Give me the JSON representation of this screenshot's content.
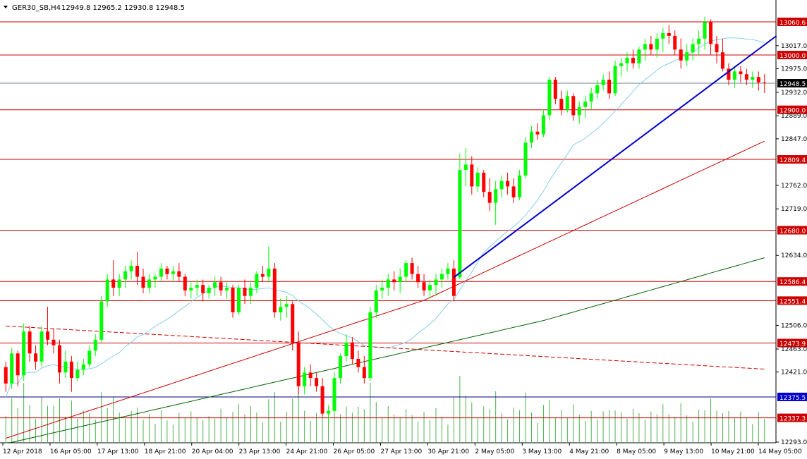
{
  "header": {
    "symbol": "GER30_SB,H4",
    "ohlc": "12949.8 12965.2 12930.8 12948.5"
  },
  "colors": {
    "up": "#00ff00",
    "down": "#ff0000",
    "volume": "#4caf50",
    "level_line": "#cc0000",
    "level_line_blue": "#000080",
    "price_line": "#708090",
    "ma_fast": "#87ceeb",
    "ma_mid": "#cc0000",
    "ma_slow": "#006400",
    "ma_long_dashed": "#cc0000",
    "trend_line": "#0000cc",
    "level_label_bg": "#cc0000",
    "level_label_blue_bg": "#0000cc",
    "current_label_bg": "#000000"
  },
  "chart_data": {
    "type": "candlestick",
    "ylim": [
      12293.0,
      13081.0
    ],
    "y_ticks": [
      "13017.0",
      "12975.0",
      "12932.0",
      "12889.0",
      "12847.0",
      "12762.0",
      "12719.0",
      "12634.0",
      "12506.0",
      "12463.0",
      "12421.0",
      "12293.0"
    ],
    "x_tick_labels": [
      "12 Apr 2018",
      "16 Apr 05:00",
      "17 Apr 13:00",
      "18 Apr 21:00",
      "20 Apr 04:00",
      "23 Apr 13:00",
      "24 Apr 21:00",
      "26 Apr 05:00",
      "27 Apr 13:00",
      "30 Apr 21:00",
      "2 May 05:00",
      "3 May 13:00",
      "4 May 21:00",
      "8 May 05:00",
      "9 May 13:00",
      "10 May 21:00",
      "14 May 05:00"
    ],
    "levels": [
      {
        "price": 13060.6,
        "label": "13060.6",
        "style": "red"
      },
      {
        "price": 13000.0,
        "label": "13000.0",
        "style": "red"
      },
      {
        "price": 12948.5,
        "label": "12948.5",
        "style": "current"
      },
      {
        "price": 12900.0,
        "label": "12900.0",
        "style": "red"
      },
      {
        "price": 12809.4,
        "label": "12809.4",
        "style": "red"
      },
      {
        "price": 12680.0,
        "label": "12680.0",
        "style": "red"
      },
      {
        "price": 12586.4,
        "label": "12586.4",
        "style": "red"
      },
      {
        "price": 12551.4,
        "label": "12551.4",
        "style": "red"
      },
      {
        "price": 12473.9,
        "label": "12473.9",
        "style": "red"
      },
      {
        "price": 12375.5,
        "label": "12375.5",
        "style": "blue"
      },
      {
        "price": 12337.3,
        "label": "12337.3",
        "style": "red"
      }
    ],
    "trend_line": {
      "from": {
        "bar": 75,
        "price": 12594
      },
      "to": {
        "bar": 129,
        "price": 13035
      }
    },
    "candles": [
      [
        12430,
        12440,
        12385,
        12400
      ],
      [
        12400,
        12465,
        12390,
        12455
      ],
      [
        12455,
        12460,
        12395,
        12415
      ],
      [
        12415,
        12510,
        12405,
        12495
      ],
      [
        12495,
        12505,
        12440,
        12455
      ],
      [
        12455,
        12470,
        12425,
        12440
      ],
      [
        12440,
        12505,
        12430,
        12495
      ],
      [
        12495,
        12540,
        12470,
        12480
      ],
      [
        12480,
        12500,
        12455,
        12470
      ],
      [
        12470,
        12480,
        12400,
        12420
      ],
      [
        12420,
        12460,
        12410,
        12440
      ],
      [
        12440,
        12450,
        12385,
        12410
      ],
      [
        12410,
        12440,
        12405,
        12425
      ],
      [
        12425,
        12445,
        12415,
        12435
      ],
      [
        12435,
        12470,
        12430,
        12460
      ],
      [
        12460,
        12490,
        12450,
        12480
      ],
      [
        12480,
        12560,
        12475,
        12550
      ],
      [
        12550,
        12600,
        12540,
        12590
      ],
      [
        12590,
        12625,
        12560,
        12575
      ],
      [
        12575,
        12600,
        12560,
        12590
      ],
      [
        12590,
        12615,
        12575,
        12605
      ],
      [
        12605,
        12625,
        12590,
        12615
      ],
      [
        12615,
        12640,
        12580,
        12595
      ],
      [
        12595,
        12610,
        12565,
        12575
      ],
      [
        12575,
        12600,
        12565,
        12590
      ],
      [
        12590,
        12600,
        12575,
        12595
      ],
      [
        12595,
        12620,
        12585,
        12610
      ],
      [
        12610,
        12615,
        12590,
        12600
      ],
      [
        12600,
        12615,
        12585,
        12605
      ],
      [
        12605,
        12620,
        12585,
        12595
      ],
      [
        12595,
        12600,
        12560,
        12570
      ],
      [
        12570,
        12585,
        12555,
        12575
      ],
      [
        12575,
        12590,
        12560,
        12580
      ],
      [
        12580,
        12590,
        12550,
        12565
      ],
      [
        12565,
        12580,
        12555,
        12575
      ],
      [
        12575,
        12595,
        12560,
        12585
      ],
      [
        12585,
        12595,
        12560,
        12570
      ],
      [
        12570,
        12585,
        12555,
        12575
      ],
      [
        12575,
        12580,
        12520,
        12530
      ],
      [
        12530,
        12580,
        12525,
        12575
      ],
      [
        12575,
        12590,
        12545,
        12560
      ],
      [
        12560,
        12585,
        12545,
        12575
      ],
      [
        12575,
        12605,
        12565,
        12600
      ],
      [
        12600,
        12615,
        12585,
        12595
      ],
      [
        12595,
        12650,
        12585,
        12610
      ],
      [
        12610,
        12620,
        12520,
        12530
      ],
      [
        12530,
        12555,
        12515,
        12540
      ],
      [
        12540,
        12560,
        12520,
        12545
      ],
      [
        12545,
        12550,
        12460,
        12475
      ],
      [
        12475,
        12495,
        12380,
        12395
      ],
      [
        12395,
        12430,
        12380,
        12420
      ],
      [
        12420,
        12435,
        12395,
        12410
      ],
      [
        12410,
        12420,
        12385,
        12395
      ],
      [
        12395,
        12410,
        12340,
        12345
      ],
      [
        12345,
        12360,
        12330,
        12350
      ],
      [
        12350,
        12420,
        12345,
        12410
      ],
      [
        12410,
        12455,
        12400,
        12450
      ],
      [
        12450,
        12490,
        12440,
        12475
      ],
      [
        12475,
        12485,
        12435,
        12445
      ],
      [
        12445,
        12460,
        12420,
        12430
      ],
      [
        12430,
        12450,
        12400,
        12410
      ],
      [
        12410,
        12540,
        12405,
        12530
      ],
      [
        12530,
        12580,
        12520,
        12570
      ],
      [
        12570,
        12590,
        12555,
        12575
      ],
      [
        12575,
        12600,
        12560,
        12590
      ],
      [
        12590,
        12605,
        12570,
        12585
      ],
      [
        12585,
        12610,
        12565,
        12595
      ],
      [
        12595,
        12625,
        12585,
        12620
      ],
      [
        12620,
        12630,
        12590,
        12600
      ],
      [
        12600,
        12615,
        12575,
        12585
      ],
      [
        12585,
        12600,
        12560,
        12570
      ],
      [
        12570,
        12590,
        12555,
        12580
      ],
      [
        12580,
        12600,
        12560,
        12590
      ],
      [
        12590,
        12610,
        12575,
        12600
      ],
      [
        12600,
        12620,
        12590,
        12610
      ],
      [
        12610,
        12625,
        12550,
        12560
      ],
      [
        12594,
        12820,
        12590,
        12790
      ],
      [
        12790,
        12830,
        12760,
        12800
      ],
      [
        12800,
        12815,
        12745,
        12760
      ],
      [
        12760,
        12795,
        12750,
        12785
      ],
      [
        12785,
        12790,
        12740,
        12750
      ],
      [
        12750,
        12775,
        12715,
        12730
      ],
      [
        12730,
        12770,
        12690,
        12755
      ],
      [
        12755,
        12780,
        12740,
        12770
      ],
      [
        12770,
        12785,
        12745,
        12760
      ],
      [
        12760,
        12775,
        12730,
        12740
      ],
      [
        12740,
        12790,
        12735,
        12780
      ],
      [
        12780,
        12850,
        12775,
        12840
      ],
      [
        12840,
        12870,
        12830,
        12860
      ],
      [
        12860,
        12875,
        12845,
        12855
      ],
      [
        12855,
        12900,
        12850,
        12890
      ],
      [
        12890,
        12960,
        12880,
        12955
      ],
      [
        12955,
        12960,
        12910,
        12920
      ],
      [
        12920,
        12935,
        12890,
        12900
      ],
      [
        12900,
        12935,
        12895,
        12925
      ],
      [
        12925,
        12930,
        12880,
        12890
      ],
      [
        12890,
        12915,
        12875,
        12905
      ],
      [
        12905,
        12925,
        12885,
        12915
      ],
      [
        12915,
        12940,
        12900,
        12930
      ],
      [
        12930,
        12955,
        12920,
        12945
      ],
      [
        12945,
        12965,
        12935,
        12955
      ],
      [
        12955,
        12970,
        12920,
        12930
      ],
      [
        12930,
        12990,
        12925,
        12980
      ],
      [
        12980,
        12995,
        12960,
        12985
      ],
      [
        12985,
        13005,
        12970,
        12995
      ],
      [
        12995,
        13010,
        12975,
        12985
      ],
      [
        12985,
        13015,
        12975,
        13010
      ],
      [
        13010,
        13030,
        12990,
        13020
      ],
      [
        13020,
        13035,
        13000,
        13010
      ],
      [
        13010,
        13040,
        12995,
        13030
      ],
      [
        13030,
        13050,
        13005,
        13040
      ],
      [
        13040,
        13055,
        13020,
        13035
      ],
      [
        13035,
        13045,
        13000,
        13010
      ],
      [
        13010,
        13030,
        12975,
        12990
      ],
      [
        12990,
        13020,
        12980,
        13005
      ],
      [
        13005,
        13030,
        12990,
        13020
      ],
      [
        13020,
        13045,
        13000,
        13030
      ],
      [
        13030,
        13070,
        13010,
        13060
      ],
      [
        13060,
        13065,
        13000,
        13020
      ],
      [
        13020,
        13035,
        12985,
        13005
      ],
      [
        13005,
        13030,
        12970,
        12975
      ],
      [
        12975,
        12985,
        12945,
        12955
      ],
      [
        12955,
        12980,
        12940,
        12970
      ],
      [
        12970,
        12980,
        12950,
        12965
      ],
      [
        12965,
        12975,
        12945,
        12955
      ],
      [
        12955,
        12970,
        12940,
        12960
      ],
      [
        12960,
        12970,
        12935,
        12950
      ],
      [
        12949.8,
        12965.2,
        12930.8,
        12948.5
      ]
    ]
  }
}
